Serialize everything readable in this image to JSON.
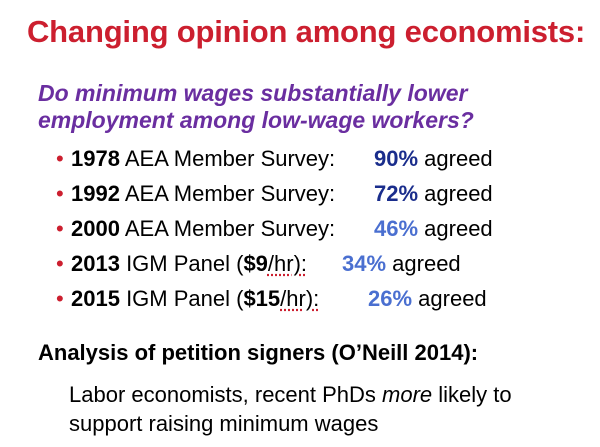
{
  "title": "Changing opinion among economists:",
  "question": {
    "line1": "Do minimum wages substantially lower",
    "line2": "employment among low-wage workers?"
  },
  "surveys": [
    {
      "year": "1978",
      "prefix": " AEA Member Survey:",
      "wage": "",
      "suffix": "",
      "pct": "90%",
      "agreed": " agreed"
    },
    {
      "year": "1992",
      "prefix": " AEA Member Survey:",
      "wage": "",
      "suffix": "",
      "pct": "72%",
      "agreed": " agreed"
    },
    {
      "year": "2000",
      "prefix": " AEA Member Survey:",
      "wage": "",
      "suffix": "",
      "pct": "46%",
      "agreed": " agreed"
    },
    {
      "year": "2013",
      "prefix": " IGM Panel (",
      "wage": "$9",
      "suffix": "/hr):",
      "pct": "34%",
      "agreed": " agreed"
    },
    {
      "year": "2015",
      "prefix": " IGM Panel (",
      "wage": "$15",
      "suffix": "/hr):",
      "pct": "26%",
      "agreed": " agreed"
    }
  ],
  "analysis": "Analysis of petition signers (O’Neill 2014):",
  "finding": {
    "line1_a": "Labor economists, recent PhDs ",
    "line1_em": "more",
    "line1_b": " likely to",
    "line2": "support raising minimum wages"
  },
  "colors": {
    "title": "#cc1f2f",
    "question": "#6a2ea0",
    "pct_high": "#1a2d8c",
    "pct_low": "#4a6fd0",
    "bullet": "#cc1f2f"
  }
}
